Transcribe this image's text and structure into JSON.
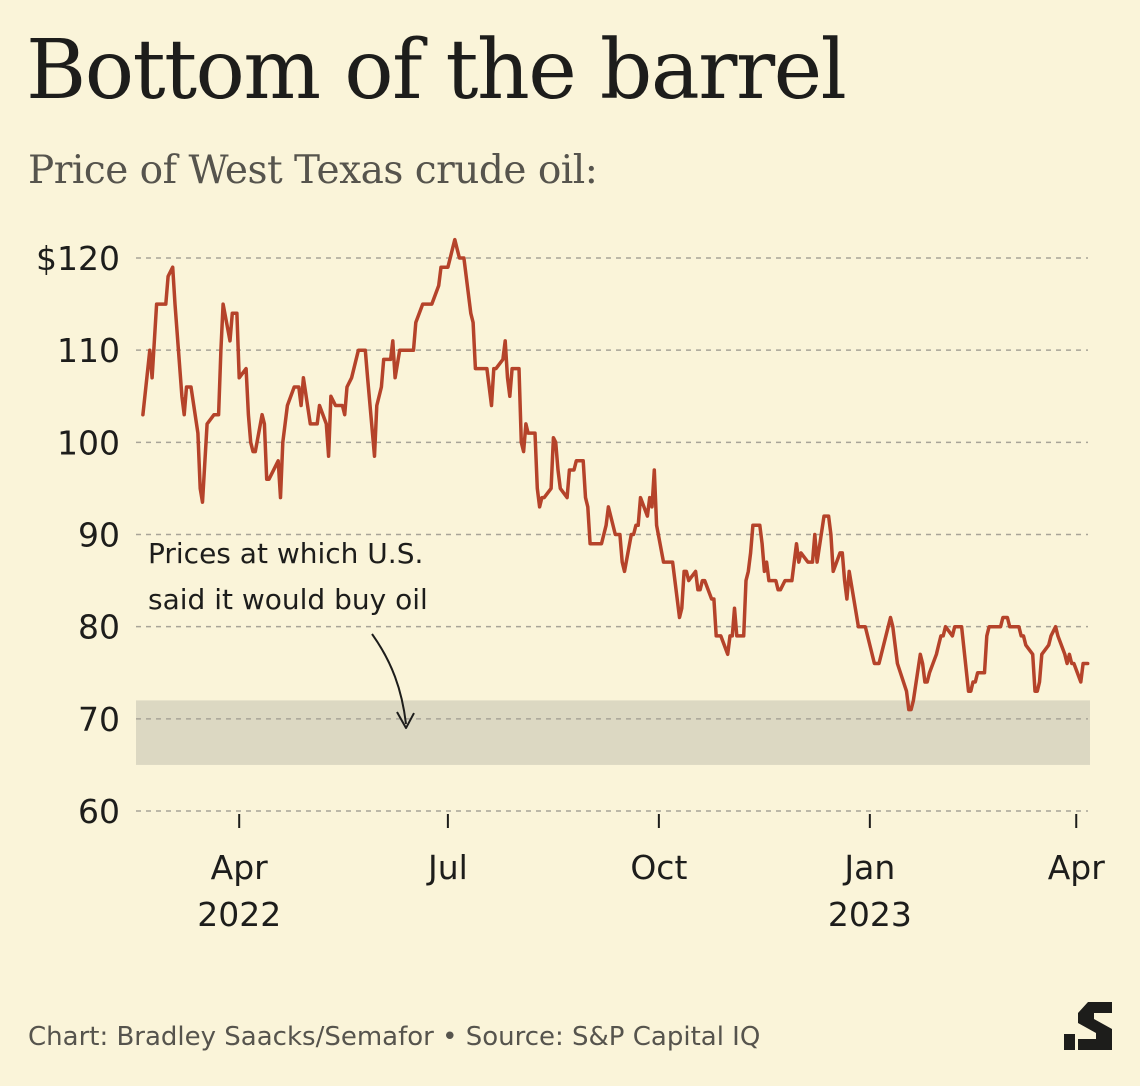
{
  "chart_data": {
    "type": "line",
    "title": "Bottom of the barrel",
    "subtitle": "Price of West Texas crude oil:",
    "credit": "Chart: Bradley Saacks/Semafor • Source: S&P Capital IQ",
    "logo": "semafor-s-logo",
    "xlabel": "",
    "ylabel": "",
    "ylim": [
      60,
      122
    ],
    "y_ticks": [
      {
        "value": 120,
        "label": "$120"
      },
      {
        "value": 110,
        "label": "110"
      },
      {
        "value": 100,
        "label": "100"
      },
      {
        "value": 90,
        "label": "90"
      },
      {
        "value": 80,
        "label": "80"
      },
      {
        "value": 70,
        "label": "70"
      },
      {
        "value": 60,
        "label": "60"
      }
    ],
    "x_range": [
      "2022-02-15",
      "2023-04-07"
    ],
    "x_ticks": [
      {
        "date": "2022-04-01",
        "label": "Apr",
        "year": "2022"
      },
      {
        "date": "2022-07-01",
        "label": "Jul",
        "year": ""
      },
      {
        "date": "2022-10-01",
        "label": "Oct",
        "year": ""
      },
      {
        "date": "2023-01-01",
        "label": "Jan",
        "year": "2023"
      },
      {
        "date": "2023-04-01",
        "label": "Apr",
        "year": ""
      }
    ],
    "grid": true,
    "colors": {
      "line": "#b5432a",
      "band": "#dcd8c2",
      "grid": "#a8a498",
      "text": "#1d1d1b"
    },
    "band": {
      "from": 65,
      "to": 72
    },
    "annotation": {
      "lines": [
        "Prices at which U.S.",
        "said it would buy oil"
      ],
      "target_value": 69
    },
    "series": [
      {
        "name": "",
        "points": [
          [
            "2022-02-18",
            103
          ],
          [
            "2022-02-21",
            110
          ],
          [
            "2022-02-22",
            107
          ],
          [
            "2022-02-24",
            115
          ],
          [
            "2022-02-28",
            115
          ],
          [
            "2022-03-01",
            118
          ],
          [
            "2022-03-03",
            119
          ],
          [
            "2022-03-04",
            115
          ],
          [
            "2022-03-07",
            105
          ],
          [
            "2022-03-08",
            103
          ],
          [
            "2022-03-09",
            106
          ],
          [
            "2022-03-11",
            106
          ],
          [
            "2022-03-14",
            101
          ],
          [
            "2022-03-15",
            95
          ],
          [
            "2022-03-16",
            93.5
          ],
          [
            "2022-03-18",
            102
          ],
          [
            "2022-03-21",
            103
          ],
          [
            "2022-03-23",
            103
          ],
          [
            "2022-03-24",
            110
          ],
          [
            "2022-03-25",
            115
          ],
          [
            "2022-03-28",
            111
          ],
          [
            "2022-03-29",
            114
          ],
          [
            "2022-03-31",
            114
          ],
          [
            "2022-04-01",
            107
          ],
          [
            "2022-04-04",
            108
          ],
          [
            "2022-04-05",
            103
          ],
          [
            "2022-04-06",
            100
          ],
          [
            "2022-04-07",
            99
          ],
          [
            "2022-04-08",
            99
          ],
          [
            "2022-04-11",
            103
          ],
          [
            "2022-04-12",
            102
          ],
          [
            "2022-04-13",
            96
          ],
          [
            "2022-04-14",
            96
          ],
          [
            "2022-04-18",
            98
          ],
          [
            "2022-04-19",
            94
          ],
          [
            "2022-04-20",
            100
          ],
          [
            "2022-04-22",
            104
          ],
          [
            "2022-04-25",
            106
          ],
          [
            "2022-04-27",
            106
          ],
          [
            "2022-04-28",
            104
          ],
          [
            "2022-04-29",
            107
          ],
          [
            "2022-05-02",
            102
          ],
          [
            "2022-05-05",
            102
          ],
          [
            "2022-05-06",
            104
          ],
          [
            "2022-05-09",
            102
          ],
          [
            "2022-05-10",
            98.5
          ],
          [
            "2022-05-11",
            105
          ],
          [
            "2022-05-13",
            104
          ],
          [
            "2022-05-16",
            104
          ],
          [
            "2022-05-17",
            103
          ],
          [
            "2022-05-18",
            106
          ],
          [
            "2022-05-20",
            107
          ],
          [
            "2022-05-23",
            110
          ],
          [
            "2022-05-26",
            110
          ],
          [
            "2022-05-27",
            107
          ],
          [
            "2022-05-30",
            98.5
          ],
          [
            "2022-05-31",
            104
          ],
          [
            "2022-06-02",
            106
          ],
          [
            "2022-06-03",
            109
          ],
          [
            "2022-06-06",
            109
          ],
          [
            "2022-06-07",
            111
          ],
          [
            "2022-06-08",
            107
          ],
          [
            "2022-06-10",
            110
          ],
          [
            "2022-06-14",
            110
          ],
          [
            "2022-06-16",
            110
          ],
          [
            "2022-06-17",
            113
          ],
          [
            "2022-06-20",
            115
          ],
          [
            "2022-06-24",
            115
          ],
          [
            "2022-06-27",
            117
          ],
          [
            "2022-06-28",
            119
          ],
          [
            "2022-06-29",
            119
          ],
          [
            "2022-07-01",
            119
          ],
          [
            "2022-07-04",
            122
          ],
          [
            "2022-07-05",
            121
          ],
          [
            "2022-07-06",
            120
          ],
          [
            "2022-07-08",
            120
          ],
          [
            "2022-07-11",
            114
          ],
          [
            "2022-07-12",
            113
          ],
          [
            "2022-07-13",
            108
          ],
          [
            "2022-07-15",
            108
          ],
          [
            "2022-07-18",
            108
          ],
          [
            "2022-07-19",
            106
          ],
          [
            "2022-07-20",
            104
          ],
          [
            "2022-07-21",
            108
          ],
          [
            "2022-07-22",
            108
          ],
          [
            "2022-07-25",
            109
          ],
          [
            "2022-07-26",
            111
          ],
          [
            "2022-07-27",
            107
          ],
          [
            "2022-07-28",
            105
          ],
          [
            "2022-07-29",
            108
          ],
          [
            "2022-08-01",
            108
          ],
          [
            "2022-08-02",
            100
          ],
          [
            "2022-08-03",
            99
          ],
          [
            "2022-08-04",
            102
          ],
          [
            "2022-08-05",
            101
          ],
          [
            "2022-08-08",
            101
          ],
          [
            "2022-08-09",
            95
          ],
          [
            "2022-08-10",
            93
          ],
          [
            "2022-08-11",
            94
          ],
          [
            "2022-08-12",
            94
          ],
          [
            "2022-08-15",
            95
          ],
          [
            "2022-08-16",
            100.5
          ],
          [
            "2022-08-17",
            100
          ],
          [
            "2022-08-18",
            97
          ],
          [
            "2022-08-19",
            95
          ],
          [
            "2022-08-22",
            94
          ],
          [
            "2022-08-23",
            97
          ],
          [
            "2022-08-24",
            97
          ],
          [
            "2022-08-25",
            97
          ],
          [
            "2022-08-26",
            98
          ],
          [
            "2022-08-29",
            98
          ],
          [
            "2022-08-30",
            94
          ],
          [
            "2022-08-31",
            93
          ],
          [
            "2022-09-01",
            89
          ],
          [
            "2022-09-02",
            89
          ],
          [
            "2022-09-06",
            89
          ],
          [
            "2022-09-07",
            90
          ],
          [
            "2022-09-08",
            91
          ],
          [
            "2022-09-09",
            93
          ],
          [
            "2022-09-12",
            90
          ],
          [
            "2022-09-13",
            90
          ],
          [
            "2022-09-14",
            90
          ],
          [
            "2022-09-15",
            87
          ],
          [
            "2022-09-16",
            86
          ],
          [
            "2022-09-19",
            90
          ],
          [
            "2022-09-20",
            90
          ],
          [
            "2022-09-21",
            91
          ],
          [
            "2022-09-22",
            91
          ],
          [
            "2022-09-23",
            94
          ],
          [
            "2022-09-26",
            92
          ],
          [
            "2022-09-27",
            94
          ],
          [
            "2022-09-28",
            93
          ],
          [
            "2022-09-29",
            97
          ],
          [
            "2022-09-30",
            91
          ],
          [
            "2022-10-03",
            87
          ],
          [
            "2022-10-04",
            87
          ],
          [
            "2022-10-06",
            87
          ],
          [
            "2022-10-07",
            87
          ],
          [
            "2022-10-10",
            81
          ],
          [
            "2022-10-11",
            82
          ],
          [
            "2022-10-12",
            86
          ],
          [
            "2022-10-13",
            86
          ],
          [
            "2022-10-14",
            85
          ],
          [
            "2022-10-17",
            86
          ],
          [
            "2022-10-18",
            84
          ],
          [
            "2022-10-19",
            84
          ],
          [
            "2022-10-20",
            85
          ],
          [
            "2022-10-21",
            85
          ],
          [
            "2022-10-24",
            83
          ],
          [
            "2022-10-25",
            83
          ],
          [
            "2022-10-26",
            79
          ],
          [
            "2022-10-27",
            79
          ],
          [
            "2022-10-28",
            79
          ],
          [
            "2022-10-31",
            77
          ],
          [
            "2022-11-01",
            79
          ],
          [
            "2022-11-02",
            79
          ],
          [
            "2022-11-03",
            82
          ],
          [
            "2022-11-04",
            79
          ],
          [
            "2022-11-07",
            79
          ],
          [
            "2022-11-08",
            85
          ],
          [
            "2022-11-09",
            86
          ],
          [
            "2022-11-10",
            88
          ],
          [
            "2022-11-11",
            91
          ],
          [
            "2022-11-14",
            91
          ],
          [
            "2022-11-15",
            89
          ],
          [
            "2022-11-16",
            86
          ],
          [
            "2022-11-17",
            87
          ],
          [
            "2022-11-18",
            85
          ],
          [
            "2022-11-21",
            85
          ],
          [
            "2022-11-22",
            84
          ],
          [
            "2022-11-23",
            84
          ],
          [
            "2022-11-25",
            85
          ],
          [
            "2022-11-28",
            85
          ],
          [
            "2022-11-29",
            87
          ],
          [
            "2022-11-30",
            89
          ],
          [
            "2022-12-01",
            87
          ],
          [
            "2022-12-02",
            88
          ],
          [
            "2022-12-05",
            87
          ],
          [
            "2022-12-06",
            87
          ],
          [
            "2022-12-07",
            87
          ],
          [
            "2022-12-08",
            90
          ],
          [
            "2022-12-09",
            87
          ],
          [
            "2022-12-12",
            92
          ],
          [
            "2022-12-13",
            92
          ],
          [
            "2022-12-14",
            92
          ],
          [
            "2022-12-15",
            90
          ],
          [
            "2022-12-16",
            86
          ],
          [
            "2022-12-19",
            88
          ],
          [
            "2022-12-20",
            88
          ],
          [
            "2022-12-21",
            85
          ],
          [
            "2022-12-22",
            83
          ],
          [
            "2022-12-23",
            86
          ],
          [
            "2022-12-27",
            80
          ],
          [
            "2022-12-28",
            80
          ],
          [
            "2022-12-29",
            80
          ],
          [
            "2022-12-30",
            80
          ],
          [
            "2023-01-03",
            76
          ],
          [
            "2023-01-04",
            76
          ],
          [
            "2023-01-05",
            76
          ],
          [
            "2023-01-06",
            77
          ],
          [
            "2023-01-09",
            80
          ],
          [
            "2023-01-10",
            81
          ],
          [
            "2023-01-11",
            80
          ],
          [
            "2023-01-12",
            78
          ],
          [
            "2023-01-13",
            76
          ],
          [
            "2023-01-17",
            73
          ],
          [
            "2023-01-18",
            71
          ],
          [
            "2023-01-19",
            71
          ],
          [
            "2023-01-20",
            72
          ],
          [
            "2023-01-23",
            77
          ],
          [
            "2023-01-24",
            76
          ],
          [
            "2023-01-25",
            74
          ],
          [
            "2023-01-26",
            74
          ],
          [
            "2023-01-27",
            75
          ],
          [
            "2023-01-30",
            77
          ],
          [
            "2023-01-31",
            78
          ],
          [
            "2023-02-01",
            79
          ],
          [
            "2023-02-02",
            79
          ],
          [
            "2023-02-03",
            80
          ],
          [
            "2023-02-06",
            79
          ],
          [
            "2023-02-07",
            80
          ],
          [
            "2023-02-08",
            80
          ],
          [
            "2023-02-09",
            80
          ],
          [
            "2023-02-10",
            80
          ],
          [
            "2023-02-13",
            73
          ],
          [
            "2023-02-14",
            73
          ],
          [
            "2023-02-15",
            74
          ],
          [
            "2023-02-16",
            74
          ],
          [
            "2023-02-17",
            75
          ],
          [
            "2023-02-20",
            75
          ],
          [
            "2023-02-21",
            79
          ],
          [
            "2023-02-22",
            80
          ],
          [
            "2023-02-23",
            80
          ],
          [
            "2023-02-24",
            80
          ],
          [
            "2023-02-27",
            80
          ],
          [
            "2023-02-28",
            81
          ],
          [
            "2023-03-01",
            81
          ],
          [
            "2023-03-02",
            81
          ],
          [
            "2023-03-03",
            80
          ],
          [
            "2023-03-06",
            80
          ],
          [
            "2023-03-07",
            80
          ],
          [
            "2023-03-08",
            79
          ],
          [
            "2023-03-09",
            79
          ],
          [
            "2023-03-10",
            78
          ],
          [
            "2023-03-13",
            77
          ],
          [
            "2023-03-14",
            73
          ],
          [
            "2023-03-15",
            73
          ],
          [
            "2023-03-16",
            74
          ],
          [
            "2023-03-17",
            77
          ],
          [
            "2023-03-20",
            78
          ],
          [
            "2023-03-21",
            79
          ],
          [
            "2023-03-22",
            79.5
          ],
          [
            "2023-03-23",
            80
          ],
          [
            "2023-03-24",
            79
          ],
          [
            "2023-03-27",
            77
          ],
          [
            "2023-03-28",
            76
          ],
          [
            "2023-03-29",
            77
          ],
          [
            "2023-03-30",
            76
          ],
          [
            "2023-03-31",
            76
          ],
          [
            "2023-04-03",
            74
          ],
          [
            "2023-04-04",
            76
          ],
          [
            "2023-04-05",
            76
          ],
          [
            "2023-04-06",
            76
          ]
        ]
      }
    ]
  }
}
